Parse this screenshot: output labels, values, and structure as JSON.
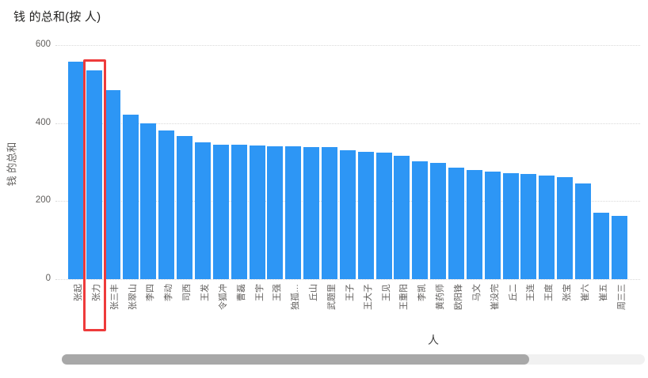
{
  "title": "钱 的总和(按 人)",
  "colors": {
    "bar": "#2D96F5",
    "highlight_box": "#EE3B3B",
    "title_text": "#252423",
    "axis_text": "#605E5C",
    "gridline": "#D9D9D9",
    "scrollbar_thumb": "#A8A8A8",
    "scrollbar_track": "#F1F1F1"
  },
  "chart_data": {
    "type": "bar",
    "title": "钱 的总和(按 人)",
    "xlabel": "人",
    "ylabel": "钱 的总和",
    "ylim": [
      0,
      600
    ],
    "y_ticks": [
      0,
      200,
      400,
      600
    ],
    "grid": "horizontal dotted",
    "legend": "none",
    "categories": [
      "张起",
      "张力",
      "张三丰",
      "张翠山",
      "李四",
      "李动",
      "司西",
      "王发",
      "令狐冲",
      "曹磊",
      "王宇",
      "王强",
      "独孤…",
      "丘山",
      "武题里",
      "王子",
      "王大子",
      "王见",
      "王重阳",
      "李凯",
      "黄药师",
      "欧阳锋",
      "马文",
      "崔没完",
      "丘二",
      "王连",
      "王度",
      "张宝",
      "崔六",
      "崔五",
      "周三三"
    ],
    "values": [
      557,
      536,
      485,
      422,
      400,
      382,
      367,
      350,
      345,
      344,
      342,
      341,
      340,
      339,
      338,
      330,
      327,
      324,
      317,
      302,
      298,
      286,
      280,
      276,
      272,
      269,
      265,
      262,
      246,
      170,
      163
    ],
    "highlight": {
      "category": "张力",
      "index": 1,
      "annotation": "red box drawn around bar and its axis label"
    }
  },
  "scrollbar": {
    "visible": true,
    "orientation": "horizontal"
  }
}
